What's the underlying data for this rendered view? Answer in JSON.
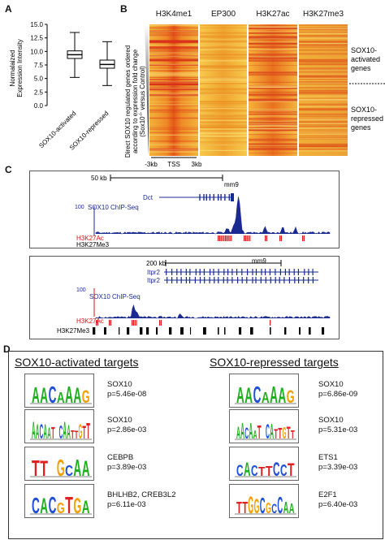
{
  "panels": {
    "A": "A",
    "B": "B",
    "C": "C",
    "D": "D"
  },
  "panelA": {
    "ylabel": "Normalized\nExpression Intensity",
    "ylabel_line1": "Normalaized",
    "ylabel_line2": "Expression Intensity",
    "yticks": [
      "15.0",
      "12.5",
      "10.0",
      "7.5",
      "5.0",
      "2.5",
      "0.0"
    ],
    "categories": [
      "SOX10-activated",
      "SOX10-repressed"
    ]
  },
  "chart_data": {
    "type": "box",
    "categories": [
      "SOX10-activated",
      "SOX10-repressed"
    ],
    "ylim": [
      0,
      15
    ],
    "series": [
      {
        "values": {
          "min": 5.2,
          "q1": 8.7,
          "median": 9.4,
          "q3": 10.1,
          "max": 13.5
        }
      },
      {
        "values": {
          "min": 3.7,
          "q1": 6.9,
          "median": 7.6,
          "q3": 8.4,
          "max": 11.8
        }
      }
    ]
  },
  "panelB": {
    "columns": [
      "H3K4me1",
      "EP300",
      "H3K27ac",
      "H3K27me3"
    ],
    "ylabel_line1": "Direct SOX10 regulated genes ordered",
    "ylabel_line2": "according to expression fold change",
    "ylabel_line3": "(Sox10",
    "ylabel_line3b": "versus Control)",
    "xticks": [
      "-3kb",
      "TSS",
      "3kb"
    ],
    "right_top": [
      "SOX10-",
      "activated",
      "genes"
    ],
    "right_bottom": [
      "SOX10-",
      "repressed",
      "genes"
    ]
  },
  "panelC": {
    "top": {
      "scale": "50 kb",
      "genome": "mm9",
      "gene": "Dct",
      "tracks": [
        "SOX10 ChIP-Seq",
        "H3K27Ac",
        "H3K27Me3"
      ],
      "ytick": "100"
    },
    "bottom": {
      "scale": "200 kb",
      "genome": "mm9",
      "genes": [
        "Itpr2",
        "Itpr2"
      ],
      "tracks": [
        "SOX10 ChIP-Seq",
        "H3K27Ac",
        "H3K27Me3"
      ],
      "ytick": "100"
    }
  },
  "panelD": {
    "left_title": "SOX10-activated targets",
    "right_title": "SOX10-repressed targets",
    "left": [
      {
        "tf": "SOX10",
        "p": "p=5.46e-08"
      },
      {
        "tf": "SOX10",
        "p": "p=2.86e-03"
      },
      {
        "tf": "CEBPB",
        "p": "p=3.89e-03"
      },
      {
        "tf": "BHLHB2, CREB3L2",
        "p": "p=6.11e-03"
      }
    ],
    "right": [
      {
        "tf": "SOX10",
        "p": "p=6.86e-09"
      },
      {
        "tf": "SOX10",
        "p": "p=5.31e-03"
      },
      {
        "tf": "ETS1",
        "p": "p=3.39e-03"
      },
      {
        "tf": "E2F1",
        "p": "p=6.40e-03"
      }
    ],
    "logos_left": [
      "AACAAAG",
      "AACAAT.CAATTGTT",
      "TT.GCAA",
      "CACGTGA"
    ],
    "logos_right": [
      "AACAAAG",
      "AACAAT.CATTGTT",
      "CACTTCCT",
      "TTGGCGCCAA"
    ]
  }
}
